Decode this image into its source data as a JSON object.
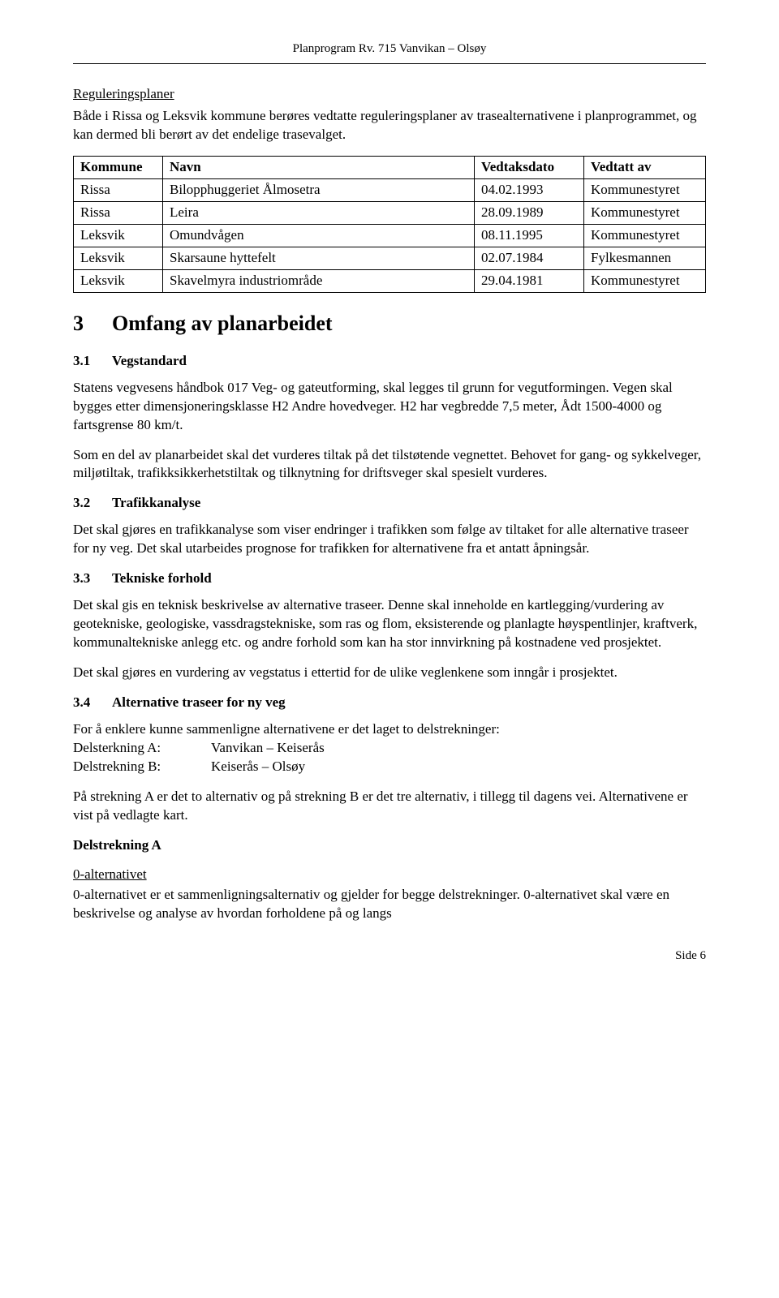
{
  "header": {
    "title": "Planprogram Rv. 715 Vanvikan – Olsøy"
  },
  "intro": {
    "heading": "Reguleringsplaner",
    "paragraph": "Både i Rissa og Leksvik kommune berøres vedtatte reguleringsplaner av trasealternativene i planprogrammet, og kan dermed bli berørt av det endelige trasevalget."
  },
  "table": {
    "columns": [
      "Kommune",
      "Navn",
      "Vedtaksdato",
      "Vedtatt av"
    ],
    "rows": [
      [
        "Rissa",
        "Bilopphuggeriet Ålmosetra",
        "04.02.1993",
        "Kommunestyret"
      ],
      [
        "Rissa",
        "Leira",
        "28.09.1989",
        "Kommunestyret"
      ],
      [
        "Leksvik",
        "Omundvågen",
        "08.11.1995",
        "Kommunestyret"
      ],
      [
        "Leksvik",
        "Skarsaune hyttefelt",
        "02.07.1984",
        "Fylkesmannen"
      ],
      [
        "Leksvik",
        "Skavelmyra industriområde",
        "29.04.1981",
        "Kommunestyret"
      ]
    ],
    "col_widths": [
      "110px",
      "auto",
      "135px",
      "150px"
    ]
  },
  "section3": {
    "number": "3",
    "title": "Omfang av planarbeidet",
    "s31": {
      "number": "3.1",
      "title": "Vegstandard",
      "p1": "Statens vegvesens håndbok 017 Veg- og gateutforming, skal legges til grunn for vegutformingen. Vegen skal bygges etter dimensjoneringsklasse H2 Andre hovedveger. H2 har vegbredde 7,5 meter, Ådt 1500-4000 og fartsgrense 80 km/t.",
      "p2": "Som en del av planarbeidet skal det vurderes tiltak på det tilstøtende vegnettet. Behovet for gang- og sykkelveger, miljøtiltak, trafikksikkerhetstiltak og tilknytning for driftsveger skal spesielt vurderes."
    },
    "s32": {
      "number": "3.2",
      "title": "Trafikkanalyse",
      "p1": "Det skal gjøres en trafikkanalyse som viser endringer i trafikken som følge av tiltaket for alle alternative traseer for ny veg. Det skal utarbeides prognose for trafikken for alternativene fra et antatt åpningsår."
    },
    "s33": {
      "number": "3.3",
      "title": "Tekniske forhold",
      "p1": "Det skal gis en teknisk beskrivelse av alternative traseer. Denne skal inneholde en kartlegging/vurdering av geotekniske, geologiske, vassdragstekniske, som ras og flom, eksisterende og planlagte høyspentlinjer, kraftverk, kommunaltekniske anlegg etc. og andre forhold som kan ha stor innvirkning på kostnadene ved prosjektet.",
      "p2": "Det skal gjøres en vurdering av vegstatus i ettertid for de ulike veglenkene som inngår i prosjektet."
    },
    "s34": {
      "number": "3.4",
      "title": "Alternative traseer for ny veg",
      "p1": "For å enklere kunne sammenligne alternativene er det laget to delstrekninger:",
      "del_a_label": "Delsterkning A:",
      "del_a_val": "Vanvikan – Keiserås",
      "del_b_label": "Delstrekning B:",
      "del_b_val": "Keiserås – Olsøy",
      "p2": "På strekning A er det to alternativ og på strekning B er det tre alternativ, i tillegg til dagens vei. Alternativene er vist på vedlagte kart.",
      "del_a_heading": "Delstrekning A",
      "alt0_heading": "0-alternativet",
      "alt0_text": "0-alternativet er et sammenligningsalternativ og gjelder for begge delstrekninger. 0-alternativet skal være en beskrivelse og analyse av hvordan forholdene på og langs"
    }
  },
  "footer": {
    "page": "Side 6"
  }
}
